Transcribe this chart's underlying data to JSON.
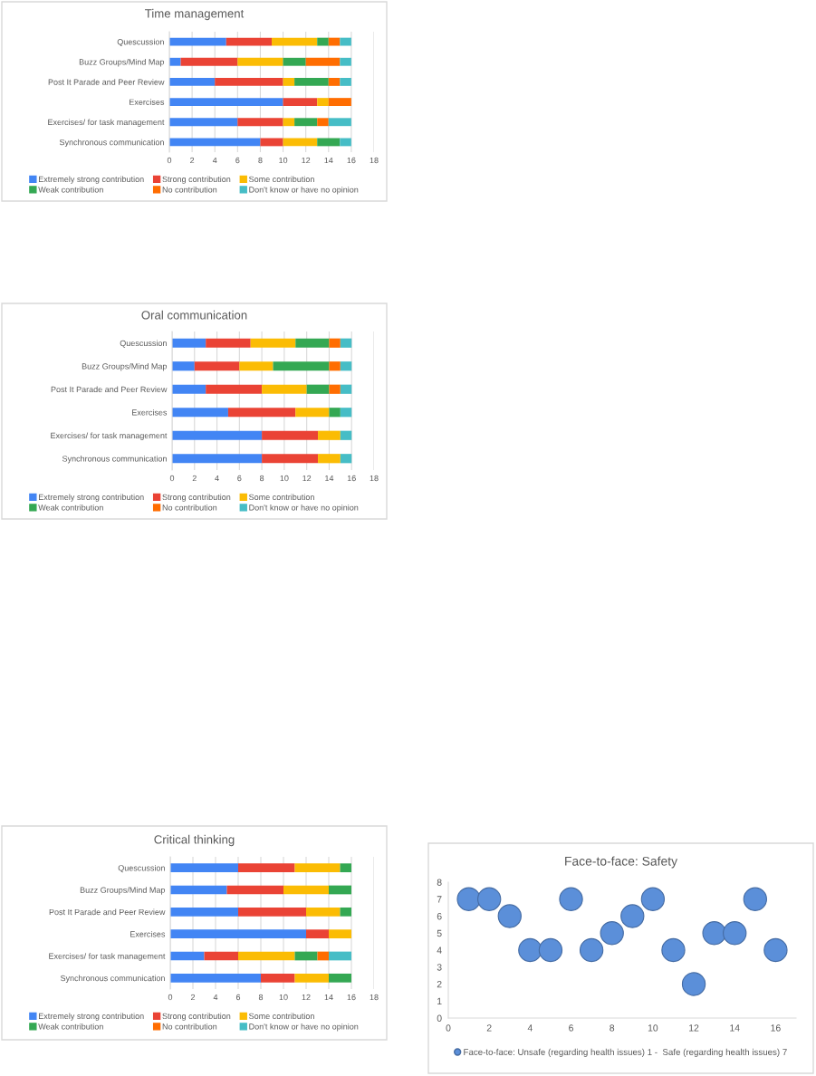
{
  "chart_data": [
    {
      "type": "bar",
      "orientation": "horizontal",
      "stacked": true,
      "title": "Time management",
      "categories": [
        "Quescussion",
        "Buzz Groups/Mind Map",
        "Post It Parade and Peer Review",
        "Exercises",
        "Exercises/ for task management",
        "Synchronous communication"
      ],
      "series": [
        {
          "name": "Extremely strong contribution",
          "color": "#4285f4",
          "values": [
            5,
            1,
            4,
            10,
            6,
            8
          ]
        },
        {
          "name": "Strong contribution",
          "color": "#ea4335",
          "values": [
            4,
            5,
            6,
            3,
            4,
            2
          ]
        },
        {
          "name": "Some contribution",
          "color": "#fbbc04",
          "values": [
            4,
            4,
            1,
            1,
            1,
            3
          ]
        },
        {
          "name": "Weak contribution",
          "color": "#34a853",
          "values": [
            1,
            2,
            3,
            0,
            2,
            2
          ]
        },
        {
          "name": "No contribution",
          "color": "#ff6d01",
          "values": [
            1,
            3,
            1,
            2,
            1,
            0
          ]
        },
        {
          "name": "Don't know or have no opinion",
          "color": "#46bdc6",
          "values": [
            1,
            1,
            1,
            0,
            2,
            1
          ]
        }
      ],
      "xlim": [
        0,
        18
      ],
      "xticks": [
        0,
        2,
        4,
        6,
        8,
        10,
        12,
        14,
        16,
        18
      ],
      "grid": "x",
      "legend": "bottom"
    },
    {
      "type": "bar",
      "orientation": "horizontal",
      "stacked": true,
      "title": "Oral communication",
      "categories": [
        "Quescussion",
        "Buzz Groups/Mind Map",
        "Post It Parade and Peer Review",
        "Exercises",
        "Exercises/ for task management",
        "Synchronous communication"
      ],
      "series": [
        {
          "name": "Extremely strong contribution",
          "color": "#4285f4",
          "values": [
            3,
            2,
            3,
            5,
            8,
            8
          ]
        },
        {
          "name": "Strong contribution",
          "color": "#ea4335",
          "values": [
            4,
            4,
            5,
            6,
            5,
            5
          ]
        },
        {
          "name": "Some contribution",
          "color": "#fbbc04",
          "values": [
            4,
            3,
            4,
            3,
            2,
            2
          ]
        },
        {
          "name": "Weak contribution",
          "color": "#34a853",
          "values": [
            3,
            5,
            2,
            1,
            0,
            0
          ]
        },
        {
          "name": "No contribution",
          "color": "#ff6d01",
          "values": [
            1,
            1,
            1,
            0,
            0,
            0
          ]
        },
        {
          "name": "Don't know or have no opinion",
          "color": "#46bdc6",
          "values": [
            1,
            1,
            1,
            1,
            1,
            1
          ]
        }
      ],
      "xlim": [
        0,
        18
      ],
      "xticks": [
        0,
        2,
        4,
        6,
        8,
        10,
        12,
        14,
        16,
        18
      ],
      "grid": "x",
      "legend": "bottom"
    },
    {
      "type": "bar",
      "orientation": "horizontal",
      "stacked": true,
      "title": "Critical thinking",
      "categories": [
        "Quescussion",
        "Buzz Groups/Mind Map",
        "Post It Parade and Peer Review",
        "Exercises",
        "Exercises/ for task management",
        "Synchronous communication"
      ],
      "series": [
        {
          "name": "Extremely strong contribution",
          "color": "#4285f4",
          "values": [
            6,
            5,
            6,
            12,
            3,
            8
          ]
        },
        {
          "name": "Strong contribution",
          "color": "#ea4335",
          "values": [
            5,
            5,
            6,
            2,
            3,
            3
          ]
        },
        {
          "name": "Some contribution",
          "color": "#fbbc04",
          "values": [
            4,
            4,
            3,
            2,
            5,
            3
          ]
        },
        {
          "name": "Weak contribution",
          "color": "#34a853",
          "values": [
            1,
            2,
            1,
            0,
            2,
            2
          ]
        },
        {
          "name": "No contribution",
          "color": "#ff6d01",
          "values": [
            0,
            0,
            0,
            0,
            1,
            0
          ]
        },
        {
          "name": "Don't know or have no opinion",
          "color": "#46bdc6",
          "values": [
            0,
            0,
            0,
            0,
            2,
            0
          ]
        }
      ],
      "xlim": [
        0,
        18
      ],
      "xticks": [
        0,
        2,
        4,
        6,
        8,
        10,
        12,
        14,
        16,
        18
      ],
      "grid": "x",
      "legend": "bottom"
    },
    {
      "type": "bubble",
      "title": "Face-to-face: Safety",
      "x": [
        1,
        2,
        3,
        4,
        5,
        6,
        7,
        8,
        9,
        10,
        11,
        12,
        13,
        14,
        15,
        16
      ],
      "series": [
        {
          "name": "Face-to-face: Unsafe (regarding health issues) 1 -  Safe (regarding health issues) 7",
          "color": "#5b8fd9",
          "values": [
            7,
            7,
            6,
            4,
            4,
            7,
            4,
            5,
            6,
            7,
            4,
            2,
            5,
            5,
            7,
            4
          ],
          "sizes": [
            1,
            1,
            1,
            1,
            1,
            1,
            1,
            1,
            1,
            1,
            1,
            1,
            1,
            1,
            1,
            1
          ]
        }
      ],
      "xlim": [
        0,
        17
      ],
      "xticks": [
        0,
        2,
        4,
        6,
        8,
        10,
        12,
        14,
        16
      ],
      "ylim": [
        0,
        8
      ],
      "yticks": [
        0,
        1,
        2,
        3,
        4,
        5,
        6,
        7,
        8
      ],
      "grid": false,
      "legend": "bottom"
    }
  ]
}
